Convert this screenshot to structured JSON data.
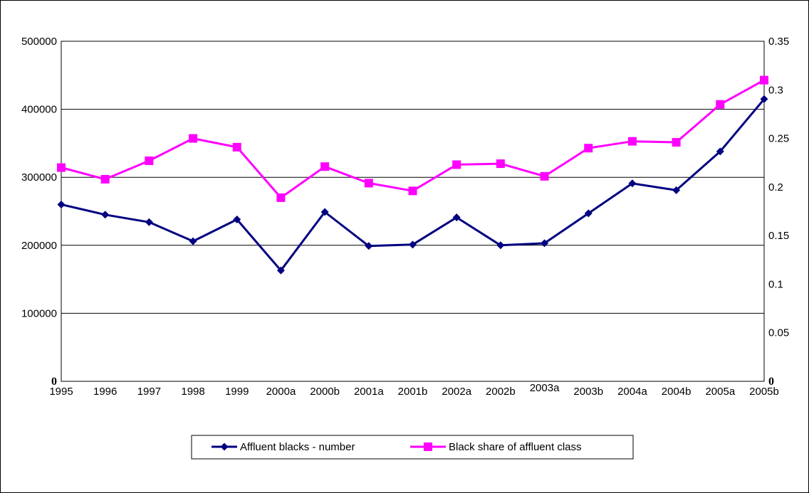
{
  "chart_data": {
    "type": "line",
    "categories": [
      "1995",
      "1996",
      "1997",
      "1998",
      "1999",
      "2000a",
      "2000b",
      "2001a",
      "2001b",
      "2002a",
      "2002b",
      "2003a",
      "2003b",
      "2004a",
      "2004b",
      "2005a",
      "2005b"
    ],
    "series": [
      {
        "name": "Affluent blacks - number",
        "axis": "left",
        "color": "#000080",
        "marker": "diamond",
        "values": [
          260000,
          245000,
          234000,
          206000,
          238000,
          163000,
          249000,
          199000,
          201000,
          241000,
          200000,
          203000,
          247000,
          291000,
          281000,
          338000,
          415000
        ]
      },
      {
        "name": "Black share of affluent class",
        "axis": "right",
        "color": "#FF00FF",
        "marker": "square",
        "values": [
          0.22,
          0.208,
          0.227,
          0.25,
          0.241,
          0.189,
          0.221,
          0.204,
          0.196,
          0.223,
          0.224,
          0.211,
          0.24,
          0.247,
          0.246,
          0.285,
          0.31
        ]
      }
    ],
    "left_axis": {
      "ylim": [
        0,
        500000
      ],
      "ticks": [
        0,
        100000,
        200000,
        300000,
        400000,
        500000
      ],
      "tick_labels": [
        "0",
        "100000",
        "200000",
        "300000",
        "400000",
        "500000"
      ]
    },
    "right_axis": {
      "ylim": [
        0,
        0.35
      ],
      "ticks": [
        0,
        0.05,
        0.1,
        0.15,
        0.2,
        0.25,
        0.3,
        0.35
      ],
      "tick_labels": [
        "0",
        "0.05",
        "0.1",
        "0.15",
        "0.2",
        "0.25",
        "0.3",
        "0.35"
      ]
    },
    "title": "",
    "xlabel": "",
    "ylabel": "",
    "grid": "horizontal",
    "legend_position": "bottom"
  }
}
